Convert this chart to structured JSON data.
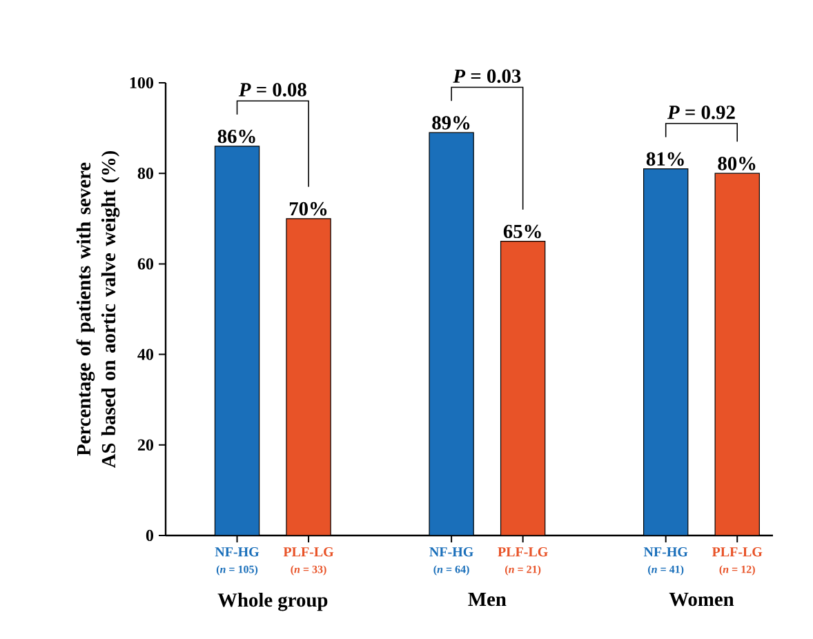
{
  "chart_data": {
    "type": "bar",
    "ylabel": "Percentage of patients with severe AS based on aortic valve weight (%)",
    "categories": [
      "Whole group",
      "Men",
      "Women"
    ],
    "series": [
      {
        "name": "NF-HG",
        "color": "#1a6fba",
        "values": [
          86,
          89,
          81
        ],
        "value_labels": [
          "86%",
          "89%",
          "81%"
        ]
      },
      {
        "name": "PLF-LG",
        "color": "#e85328",
        "values": [
          70,
          65,
          80
        ],
        "value_labels": [
          "70%",
          "65%",
          "80%"
        ]
      }
    ],
    "legend": "bottom",
    "ylim": [
      0,
      100
    ],
    "yticks": [
      0,
      20,
      40,
      60,
      80,
      100
    ],
    "annotations": [
      "*P* = 0.08",
      "*P* = 0.03",
      "*P* = 0.92",
      "(*n* = 105)",
      "(*n* = 33)",
      "(*n* = 64)",
      "(*n* = 21)",
      "(*n* = 41)",
      "(*n* = 12)"
    ]
  }
}
